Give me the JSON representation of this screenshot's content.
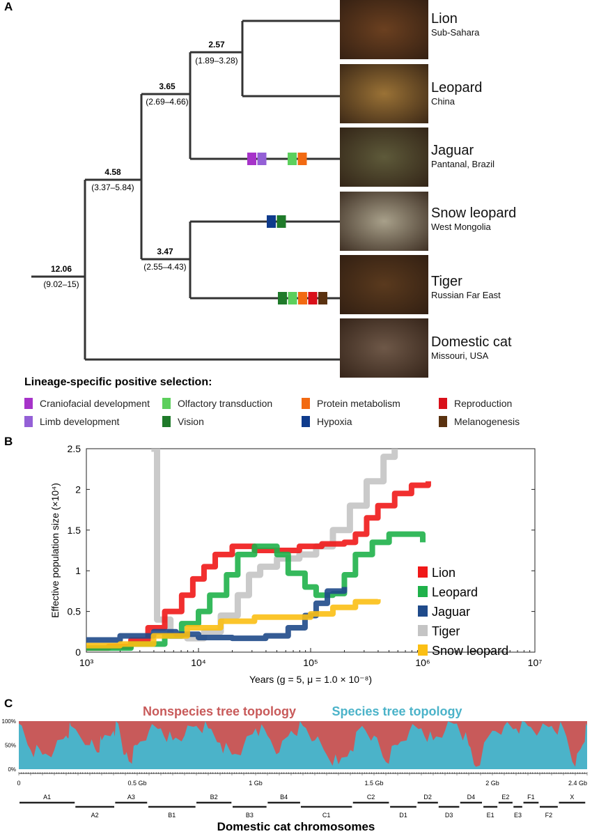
{
  "panels": {
    "a": "A",
    "b": "B",
    "c": "C"
  },
  "tree": {
    "nodes": [
      {
        "age": "12.06",
        "ci": "(9.02–15)"
      },
      {
        "age": "4.58",
        "ci": "(3.37–5.84)"
      },
      {
        "age": "3.65",
        "ci": "(2.69–4.66)"
      },
      {
        "age": "2.57",
        "ci": "(1.89–3.28)"
      },
      {
        "age": "3.47",
        "ci": "(2.55–4.43)"
      }
    ],
    "species": [
      {
        "name": "Lion",
        "location": "Sub-Sahara",
        "photo_color": "#6b4020"
      },
      {
        "name": "Leopard",
        "location": "China",
        "photo_color": "#9a7236"
      },
      {
        "name": "Jaguar",
        "location": "Pantanal, Brazil",
        "photo_color": "#5e5a3a"
      },
      {
        "name": "Snow leopard",
        "location": "West Mongolia",
        "photo_color": "#a8a08a"
      },
      {
        "name": "Tiger",
        "location": "Russian Far East",
        "photo_color": "#5a3a1e"
      },
      {
        "name": "Domestic cat",
        "location": "Missouri, USA",
        "photo_color": "#6e5848"
      }
    ],
    "branch_markers": {
      "Jaguar": [
        [
          "Craniofacial development",
          "Limb development"
        ],
        [
          "Olfactory transduction",
          "Protein metabolism"
        ]
      ],
      "Snow leopard": [
        [
          "Hypoxia",
          "Vision"
        ]
      ],
      "Tiger": [
        [
          "Vision",
          "Olfactory transduction",
          "Protein metabolism",
          "Reproduction",
          "Melanogenesis"
        ]
      ]
    }
  },
  "legend": {
    "title": "Lineage-specific positive selection:",
    "items": [
      {
        "label": "Craniofacial development",
        "color": "#a633c9"
      },
      {
        "label": "Limb development",
        "color": "#9460d6"
      },
      {
        "label": "Olfactory transduction",
        "color": "#5ccf5c"
      },
      {
        "label": "Vision",
        "color": "#1f7a2a"
      },
      {
        "label": "Protein metabolism",
        "color": "#f26a12"
      },
      {
        "label": "Hypoxia",
        "color": "#0f3b8c"
      },
      {
        "label": "Reproduction",
        "color": "#d9101a"
      },
      {
        "label": "Melanogenesis",
        "color": "#5a3210"
      }
    ]
  },
  "chart_data": [
    {
      "type": "line",
      "xlabel": "Years (g = 5, μ = 1.0 × 10⁻⁸)",
      "ylabel": "Effective population size (×10⁴)",
      "xscale": "log",
      "xlim": [
        1000,
        10000000
      ],
      "ylim": [
        0,
        2.5
      ],
      "xticks": [
        "10³",
        "10⁴",
        "10⁵",
        "10⁶",
        "10⁷"
      ],
      "yticks": [
        "0",
        "0.5",
        "1",
        "1.5",
        "2",
        "2.5"
      ],
      "legend": "right",
      "series": [
        {
          "name": "Lion",
          "color": "#f01818",
          "x": [
            1000,
            1580,
            2500,
            3550,
            5000,
            7080,
            8900,
            11200,
            14100,
            20000,
            31600,
            50100,
            79400,
            126000,
            200000,
            251000,
            316000,
            398000,
            562000,
            794000,
            1120000
          ],
          "y": [
            0.05,
            0.07,
            0.15,
            0.3,
            0.5,
            0.7,
            0.9,
            1.05,
            1.2,
            1.3,
            1.25,
            1.25,
            1.3,
            1.33,
            1.35,
            1.45,
            1.65,
            1.8,
            1.95,
            2.05,
            2.1
          ]
        },
        {
          "name": "Leopard",
          "color": "#1fb14a",
          "x": [
            1000,
            2500,
            5000,
            7080,
            10000,
            12600,
            17800,
            22400,
            31600,
            39800,
            50100,
            63100,
            89100,
            112000,
            158000,
            200000,
            251000,
            355000,
            501000,
            708000,
            1000000
          ],
          "y": [
            0.05,
            0.1,
            0.2,
            0.35,
            0.5,
            0.7,
            0.95,
            1.2,
            1.3,
            1.3,
            1.2,
            0.97,
            0.8,
            0.7,
            0.72,
            0.95,
            1.2,
            1.35,
            1.45,
            1.45,
            1.35
          ]
        },
        {
          "name": "Jaguar",
          "color": "#1f4a8a",
          "x": [
            1000,
            2000,
            3980,
            6310,
            10000,
            20000,
            39800,
            63100,
            89100,
            112000,
            141000,
            200000
          ],
          "y": [
            0.15,
            0.2,
            0.25,
            0.22,
            0.18,
            0.17,
            0.2,
            0.3,
            0.45,
            0.6,
            0.75,
            0.8
          ]
        },
        {
          "name": "Tiger",
          "color": "#c4c4c4",
          "x": [
            3800,
            4270,
            5620,
            7940,
            11200,
            15800,
            22400,
            28200,
            35500,
            50100,
            79400,
            112000,
            158000,
            224000,
            316000,
            447000,
            562000
          ],
          "y": [
            2.5,
            0.4,
            0.2,
            0.17,
            0.25,
            0.45,
            0.7,
            0.95,
            1.05,
            1.15,
            1.2,
            1.3,
            1.5,
            1.8,
            2.1,
            2.4,
            2.55
          ]
        },
        {
          "name": "Snow leopard",
          "color": "#fbbf14",
          "x": [
            1000,
            2000,
            3980,
            7940,
            15800,
            31600,
            63100,
            100000,
            158000,
            251000,
            398000
          ],
          "y": [
            0.08,
            0.1,
            0.2,
            0.3,
            0.38,
            0.43,
            0.43,
            0.47,
            0.55,
            0.62,
            0.65
          ]
        }
      ]
    },
    {
      "type": "area",
      "series": [
        {
          "name": "Nonspecies tree topology",
          "color": "#c85a5a"
        },
        {
          "name": "Species tree topology",
          "color": "#4bb3c9"
        }
      ],
      "xlabel": "Domestic cat chromosomes",
      "xticks": [
        "0",
        "0.5 Gb",
        "1 Gb",
        "1.5 Gb",
        "2 Gb",
        "2.4 Gb"
      ],
      "yticks": [
        "0%",
        "50%",
        "100%"
      ],
      "xlim_gb": [
        0,
        2.4
      ],
      "species_pct": {
        "x_gb": [
          0,
          0.05,
          0.1,
          0.15,
          0.2,
          0.22,
          0.3,
          0.33,
          0.35,
          0.4,
          0.42,
          0.45,
          0.47,
          0.5,
          0.55,
          0.6,
          0.65,
          0.7,
          0.75,
          0.8,
          0.85,
          0.9,
          0.95,
          1.0,
          1.05,
          1.1,
          1.15,
          1.2,
          1.25,
          1.3,
          1.35,
          1.4,
          1.45,
          1.5,
          1.55,
          1.6,
          1.65,
          1.7,
          1.75,
          1.8,
          1.85,
          1.9,
          1.93,
          2.0,
          2.05,
          2.1,
          2.15,
          2.2,
          2.25,
          2.3,
          2.35,
          2.38,
          2.4
        ],
        "y": [
          95,
          40,
          30,
          40,
          70,
          90,
          50,
          35,
          60,
          80,
          95,
          30,
          15,
          50,
          80,
          85,
          60,
          70,
          90,
          85,
          55,
          30,
          50,
          85,
          70,
          35,
          80,
          90,
          60,
          30,
          10,
          40,
          90,
          70,
          15,
          50,
          80,
          85,
          60,
          80,
          95,
          50,
          5,
          80,
          90,
          85,
          90,
          80,
          90,
          85,
          5,
          50,
          90
        ]
      },
      "chromosomes": [
        {
          "name": "A1",
          "start": 0.003,
          "end": 0.236,
          "row": "upper"
        },
        {
          "name": "A2",
          "start": 0.239,
          "end": 0.403,
          "row": "lower"
        },
        {
          "name": "A3",
          "start": 0.407,
          "end": 0.542,
          "row": "upper"
        },
        {
          "name": "B1",
          "start": 0.547,
          "end": 0.746,
          "row": "lower"
        },
        {
          "name": "B2",
          "start": 0.75,
          "end": 0.898,
          "row": "upper"
        },
        {
          "name": "B3",
          "start": 0.903,
          "end": 1.046,
          "row": "lower"
        },
        {
          "name": "B4",
          "start": 1.051,
          "end": 1.188,
          "row": "upper"
        },
        {
          "name": "C1",
          "start": 1.191,
          "end": 1.407,
          "row": "lower"
        },
        {
          "name": "C2",
          "start": 1.411,
          "end": 1.563,
          "row": "upper"
        },
        {
          "name": "D1",
          "start": 1.568,
          "end": 1.679,
          "row": "lower"
        },
        {
          "name": "D2",
          "start": 1.684,
          "end": 1.77,
          "row": "upper"
        },
        {
          "name": "D3",
          "start": 1.773,
          "end": 1.86,
          "row": "lower"
        },
        {
          "name": "D4",
          "start": 1.864,
          "end": 1.956,
          "row": "upper"
        },
        {
          "name": "E1",
          "start": 1.962,
          "end": 2.021,
          "row": "lower"
        },
        {
          "name": "E2",
          "start": 2.026,
          "end": 2.085,
          "row": "upper"
        },
        {
          "name": "E3",
          "start": 2.089,
          "end": 2.126,
          "row": "lower"
        },
        {
          "name": "F1",
          "start": 2.131,
          "end": 2.195,
          "row": "upper"
        },
        {
          "name": "F2",
          "start": 2.2,
          "end": 2.276,
          "row": "lower"
        },
        {
          "name": "X",
          "start": 2.281,
          "end": 2.392,
          "row": "upper"
        }
      ]
    }
  ]
}
